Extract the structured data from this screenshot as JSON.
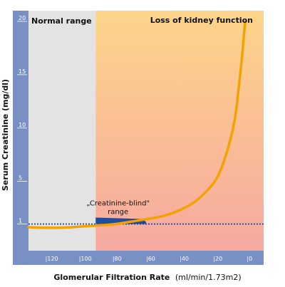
{
  "chart_data": {
    "type": "line",
    "xlabel_bold": "Glomerular Filtration Rate",
    "xlabel_units": "(ml/min/1.73m2)",
    "ylabel": "Serum Creatinine (mg/dl)",
    "xlim": [
      130,
      -10
    ],
    "ylim": [
      -1.5,
      21
    ],
    "y_ticks": [
      {
        "value": 1,
        "label": "1"
      },
      {
        "value": 5,
        "label": "5"
      },
      {
        "value": 10,
        "label": "10"
      },
      {
        "value": 15,
        "label": "15"
      },
      {
        "value": 20,
        "label": "20"
      }
    ],
    "x_ticks": [
      {
        "value": 120,
        "label": "|120"
      },
      {
        "value": 100,
        "label": "|100"
      },
      {
        "value": 80,
        "label": "|80"
      },
      {
        "value": 60,
        "label": "|60"
      },
      {
        "value": 40,
        "label": "|40"
      },
      {
        "value": 20,
        "label": "|20"
      },
      {
        "value": 0,
        "label": "|0"
      }
    ],
    "regions": [
      {
        "name": "Normal range",
        "x_from": 130,
        "x_to": 90
      },
      {
        "name": "Loss of kidney function",
        "x_from": 90,
        "x_to": -10
      }
    ],
    "series": [
      {
        "x": [
          130,
          120,
          110,
          100,
          90,
          80,
          70,
          60,
          50,
          40,
          30,
          20,
          15,
          10,
          7,
          5,
          3,
          1
        ],
        "y": [
          0.7,
          0.65,
          0.66,
          0.75,
          0.86,
          0.97,
          1.2,
          1.45,
          1.75,
          2.3,
          3.2,
          4.8,
          6.3,
          8.8,
          11.0,
          13.5,
          16.5,
          20.0
        ]
      }
    ],
    "reference_line": {
      "y": 1,
      "style": "dotted"
    },
    "annotation": {
      "label_line1": "„Creatinine-blind\"",
      "label_line2": "range",
      "x_from": 90,
      "x_to": 60
    },
    "colors": {
      "axis_band": "#7890c4",
      "normal_bg": "#e3e3e3",
      "loss_top": "#fcd58a",
      "loss_bottom": "#f7a9a0",
      "curve": "#f5a100",
      "blind_band": "#1f4e9c",
      "ref_line": "#1c3f8a"
    }
  }
}
